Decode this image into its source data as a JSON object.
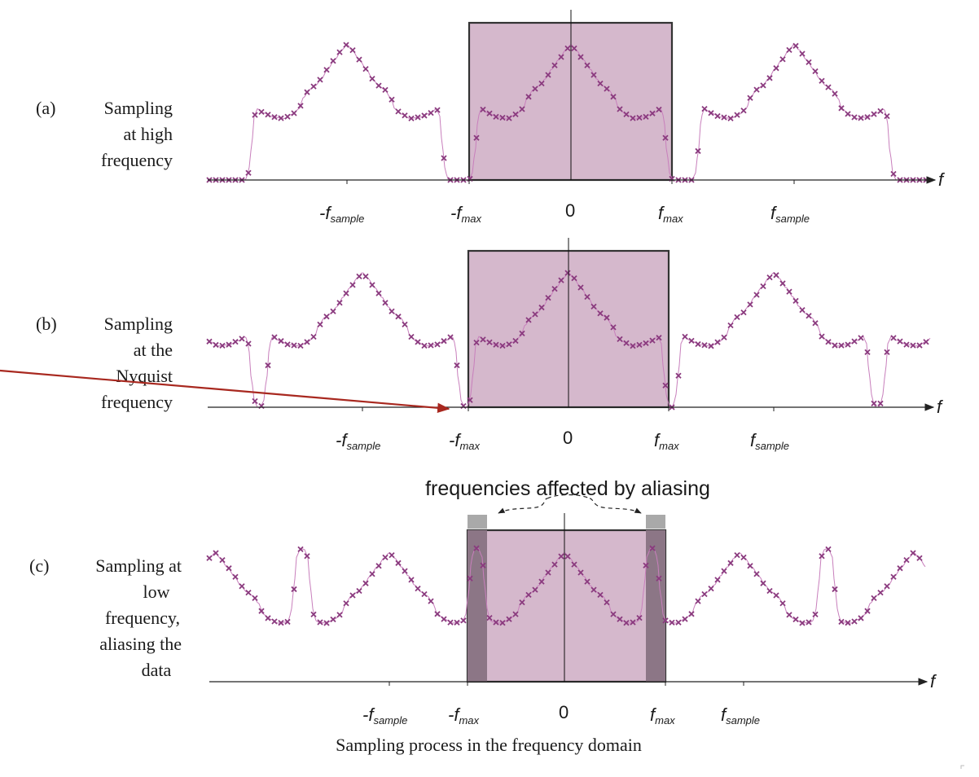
{
  "colors": {
    "passband_fill": "#d5b8cc",
    "curve": "#c87fbc",
    "marker": "#8a3a7e",
    "alias_band": "#8c7686",
    "alias_cap": "#a9a9a9",
    "arrow": "#a8281f"
  },
  "panels": [
    {
      "id": "a",
      "label_prefix": "(a)",
      "label_lines": [
        "Sampling",
        "at high",
        "frequency"
      ],
      "axis_letter": "f",
      "ticks": {
        "neg_fsample": {
          "base": "-f",
          "sub": "sample"
        },
        "neg_fmax": {
          "base": "-f",
          "sub": "max"
        },
        "zero": "0",
        "fmax": {
          "base": "f",
          "sub": "max"
        },
        "fsample": {
          "base": "f",
          "sub": "sample"
        }
      }
    },
    {
      "id": "b",
      "label_prefix": "(b)",
      "label_lines": [
        "Sampling",
        "at the",
        "Nyquist",
        "frequency"
      ],
      "axis_letter": "f",
      "ticks": {
        "neg_fsample": {
          "base": "-f",
          "sub": "sample"
        },
        "neg_fmax": {
          "base": "-f",
          "sub": "max"
        },
        "zero": "0",
        "fmax": {
          "base": "f",
          "sub": "max"
        },
        "fsample": {
          "base": "f",
          "sub": "sample"
        }
      }
    },
    {
      "id": "c",
      "label_prefix": "(c)",
      "label_lines": [
        "Sampling at",
        "low",
        "frequency,",
        "aliasing the",
        "data"
      ],
      "axis_letter": "f",
      "ticks": {
        "neg_fsample": {
          "base": "-f",
          "sub": "sample"
        },
        "neg_fmax": {
          "base": "-f",
          "sub": "max"
        },
        "zero": "0",
        "fmax": {
          "base": "f",
          "sub": "max"
        },
        "fsample": {
          "base": "f",
          "sub": "sample"
        }
      }
    }
  ],
  "aliasing_note": "frequencies affected by aliasing",
  "caption": "Sampling process in the frequency domain"
}
